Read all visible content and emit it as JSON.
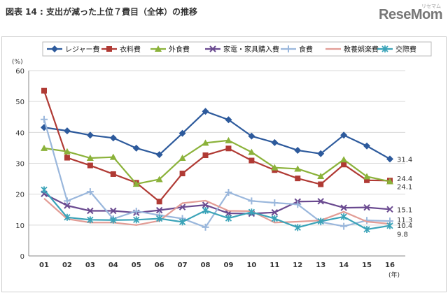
{
  "header": {
    "title": "図表 14 : 支出が減った上位７費目（全体）の推移",
    "logo": "ReseMom",
    "logo_sub": "リセマム"
  },
  "chart_data": {
    "type": "line",
    "title": "支出が減った上位７費目（全体）の推移",
    "ylabel": "(%)",
    "xlabel": "(年)",
    "ylim": [
      0,
      60
    ],
    "yticks": [
      0,
      10,
      20,
      30,
      40,
      50,
      60
    ],
    "grid": true,
    "legend_position": "top",
    "categories": [
      "01",
      "02",
      "03",
      "04",
      "05",
      "06",
      "07",
      "08",
      "09",
      "10",
      "11",
      "12",
      "13",
      "14",
      "15",
      "16"
    ],
    "series": [
      {
        "name": "レジャー費",
        "color": "#2d5a9c",
        "marker": "diamond",
        "values": [
          41.6,
          40.5,
          39.1,
          38.2,
          34.9,
          32.8,
          39.7,
          46.8,
          44.1,
          38.8,
          36.7,
          34.2,
          33.1,
          39.1,
          35.6,
          31.4
        ]
      },
      {
        "name": "衣料費",
        "color": "#b03a34",
        "marker": "square",
        "values": [
          53.5,
          31.8,
          29.3,
          26.5,
          23.7,
          17.6,
          26.7,
          32.6,
          34.8,
          30.9,
          27.8,
          25.1,
          23.2,
          29.6,
          24.5,
          24.4
        ]
      },
      {
        "name": "外食費",
        "color": "#8bb23a",
        "marker": "triangle",
        "values": [
          34.9,
          33.8,
          31.7,
          32.0,
          23.3,
          24.8,
          31.7,
          36.6,
          37.4,
          33.6,
          28.6,
          28.2,
          25.8,
          31.2,
          25.7,
          24.1
        ]
      },
      {
        "name": "家電・家具購入費",
        "color": "#6a4a90",
        "marker": "x",
        "values": [
          20.1,
          16.3,
          14.6,
          14.6,
          14.0,
          14.8,
          15.8,
          16.5,
          13.8,
          13.7,
          14.1,
          17.6,
          17.7,
          15.6,
          15.7,
          15.1
        ]
      },
      {
        "name": "食費",
        "color": "#9ab7dc",
        "marker": "plus",
        "values": [
          44.2,
          17.8,
          20.8,
          12.0,
          14.5,
          13.2,
          12.1,
          9.3,
          20.6,
          17.8,
          17.2,
          16.7,
          11.0,
          9.6,
          11.5,
          11.3
        ]
      },
      {
        "name": "教養娯楽費",
        "color": "#e29c95",
        "marker": "none",
        "values": [
          18.6,
          12.0,
          10.8,
          10.8,
          10.0,
          11.4,
          17.1,
          17.9,
          14.6,
          14.5,
          10.8,
          11.1,
          11.5,
          14.3,
          11.1,
          10.4
        ]
      },
      {
        "name": "交際費",
        "color": "#3aa3b8",
        "marker": "star",
        "values": [
          21.4,
          12.5,
          11.7,
          11.6,
          11.7,
          12.1,
          11.0,
          14.7,
          12.2,
          14.2,
          12.1,
          9.2,
          11.2,
          12.7,
          8.6,
          9.8
        ]
      }
    ],
    "end_labels": [
      "31.4",
      "24.4",
      "24.1",
      "15.1",
      "11.3",
      "10.4",
      "9.8"
    ]
  }
}
